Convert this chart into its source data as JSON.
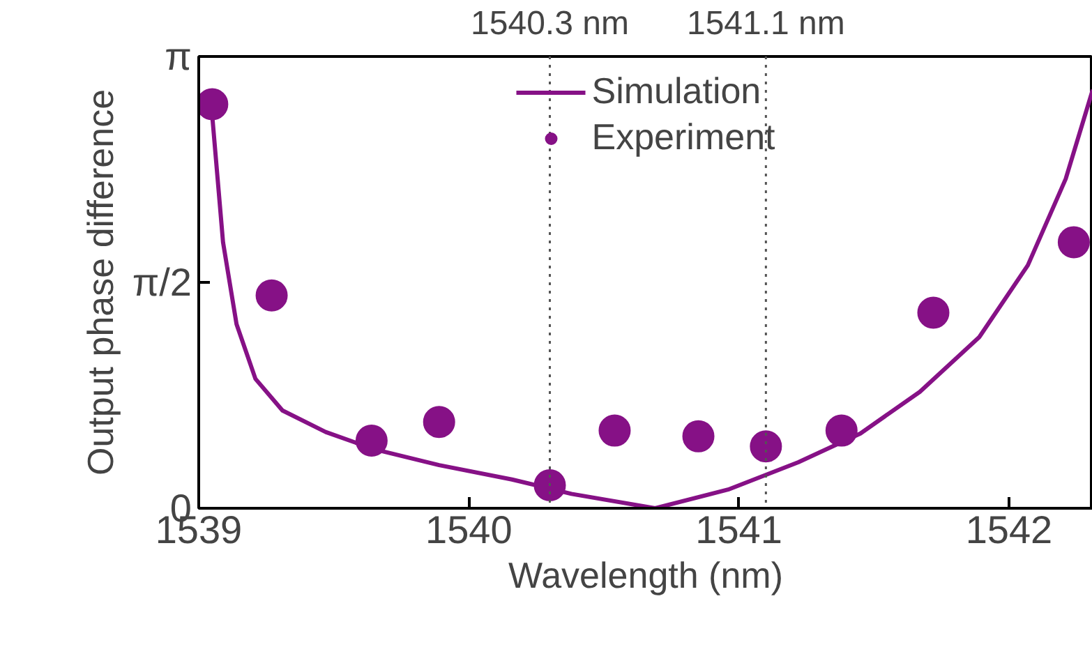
{
  "chart_data": {
    "type": "line",
    "xlabel": "Wavelength (nm)",
    "ylabel": "Output phase difference",
    "xlim": [
      1539,
      1542.31
    ],
    "xticks": [
      1539,
      1540,
      1541,
      1542
    ],
    "ylim": [
      0,
      3.1416
    ],
    "yticks": [
      {
        "value": 0,
        "label": "0"
      },
      {
        "value": 1.5708,
        "label": "π/2"
      },
      {
        "value": 3.1416,
        "label": "π"
      }
    ],
    "grid": false,
    "legend": "top",
    "series": [
      {
        "name": "Simulation",
        "color": "#861186",
        "marker": "none",
        "line_style": "solid",
        "x": [
          1539.05,
          1539.09,
          1539.14,
          1539.21,
          1539.31,
          1539.47,
          1539.65,
          1539.89,
          1540.16,
          1540.38,
          1540.69,
          1540.96,
          1541.22,
          1541.45,
          1541.67,
          1541.89,
          1542.07,
          1542.21,
          1542.31
        ],
        "values": [
          2.73,
          1.85,
          1.28,
          0.9,
          0.68,
          0.53,
          0.41,
          0.3,
          0.2,
          0.1,
          0,
          0.13,
          0.32,
          0.52,
          0.81,
          1.19,
          1.69,
          2.29,
          2.91
        ]
      },
      {
        "name": "Experiment",
        "type": "scatter",
        "color": "#861186",
        "marker": "circle",
        "x": [
          1539.05,
          1539.27,
          1539.64,
          1539.89,
          1540.3,
          1540.54,
          1540.85,
          1541.1,
          1541.38,
          1541.72,
          1542.24
        ],
        "values": [
          2.81,
          1.48,
          0.47,
          0.6,
          0.16,
          0.54,
          0.5,
          0.43,
          0.54,
          1.36,
          1.85
        ]
      }
    ],
    "ref_lines": [
      {
        "axis": "x",
        "value": 1540.3,
        "label": "1540.3 nm",
        "color": "#555555",
        "line_style": "dotted"
      },
      {
        "axis": "x",
        "value": 1541.1,
        "label": "1541.1 nm",
        "color": "#555555",
        "line_style": "dotted"
      }
    ]
  }
}
